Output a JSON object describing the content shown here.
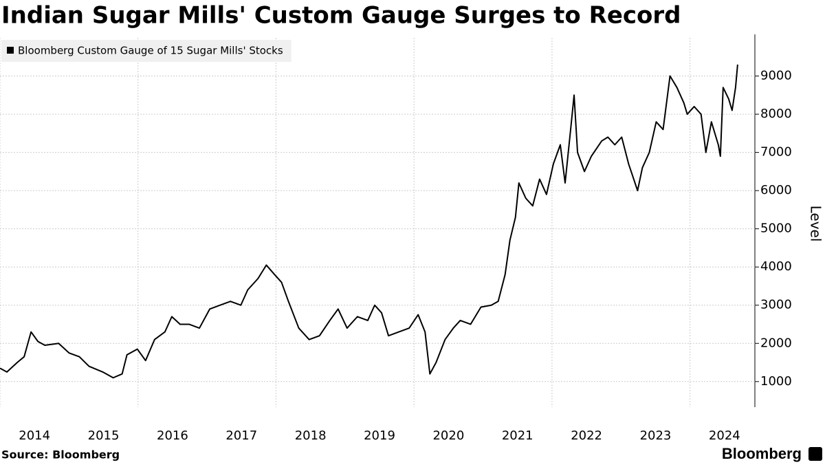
{
  "chart_data": {
    "type": "line",
    "title": "Indian Sugar Mills' Custom Gauge Surges to Record",
    "y_label": "Level",
    "source": "Source: Bloomberg",
    "logo": "Bloomberg",
    "legend": "top-left",
    "grid": true,
    "xlim": [
      2014,
      2024.94
    ],
    "xticks": [
      2014,
      2015,
      2016,
      2017,
      2018,
      2019,
      2020,
      2021,
      2022,
      2023,
      2024
    ],
    "ylim": [
      330,
      10000
    ],
    "yticks": [
      1000,
      2000,
      3000,
      4000,
      5000,
      6000,
      7000,
      8000,
      9000
    ],
    "series": [
      {
        "name": "Bloomberg Custom Gauge of 15 Sugar Mills' Stocks",
        "color": "#000000",
        "x": [
          2014.0,
          2014.1,
          2014.25,
          2014.35,
          2014.45,
          2014.55,
          2014.65,
          2014.85,
          2015.0,
          2015.15,
          2015.29,
          2015.49,
          2015.64,
          2015.77,
          2015.84,
          2015.99,
          2016.11,
          2016.24,
          2016.39,
          2016.49,
          2016.61,
          2016.74,
          2016.89,
          2017.04,
          2017.19,
          2017.34,
          2017.49,
          2017.59,
          2017.74,
          2017.86,
          2017.98,
          2018.08,
          2018.18,
          2018.33,
          2018.48,
          2018.63,
          2018.78,
          2018.9,
          2019.03,
          2019.18,
          2019.33,
          2019.43,
          2019.53,
          2019.63,
          2019.78,
          2019.93,
          2020.06,
          2020.16,
          2020.23,
          2020.32,
          2020.45,
          2020.57,
          2020.67,
          2020.82,
          2020.97,
          2021.12,
          2021.22,
          2021.32,
          2021.39,
          2021.47,
          2021.52,
          2021.62,
          2021.72,
          2021.82,
          2021.92,
          2022.02,
          2022.12,
          2022.19,
          2022.27,
          2022.32,
          2022.37,
          2022.47,
          2022.57,
          2022.72,
          2022.81,
          2022.91,
          2023.01,
          2023.11,
          2023.24,
          2023.31,
          2023.41,
          2023.51,
          2023.61,
          2023.71,
          2023.81,
          2023.91,
          2023.96,
          2024.06,
          2024.16,
          2024.23,
          2024.31,
          2024.41,
          2024.44,
          2024.48,
          2024.56,
          2024.61,
          2024.66,
          2024.69
        ],
        "values": [
          1350,
          1250,
          1500,
          1650,
          2300,
          2050,
          1950,
          2000,
          1750,
          1650,
          1400,
          1250,
          1100,
          1200,
          1700,
          1850,
          1550,
          2100,
          2300,
          2700,
          2500,
          2500,
          2400,
          2900,
          3000,
          3100,
          3000,
          3400,
          3700,
          4050,
          3800,
          3600,
          3100,
          2400,
          2100,
          2200,
          2600,
          2900,
          2400,
          2700,
          2600,
          3000,
          2800,
          2200,
          2300,
          2400,
          2750,
          2300,
          1200,
          1500,
          2100,
          2400,
          2600,
          2500,
          2950,
          3000,
          3100,
          3800,
          4700,
          5300,
          6200,
          5800,
          5600,
          6300,
          5900,
          6700,
          7200,
          6200,
          7600,
          8500,
          7000,
          6500,
          6900,
          7300,
          7400,
          7200,
          7400,
          6700,
          6000,
          6600,
          7000,
          7800,
          7600,
          9000,
          8700,
          8300,
          8000,
          8200,
          8000,
          7000,
          7800,
          7200,
          6900,
          8700,
          8400,
          8100,
          8700,
          9300
        ]
      }
    ]
  }
}
